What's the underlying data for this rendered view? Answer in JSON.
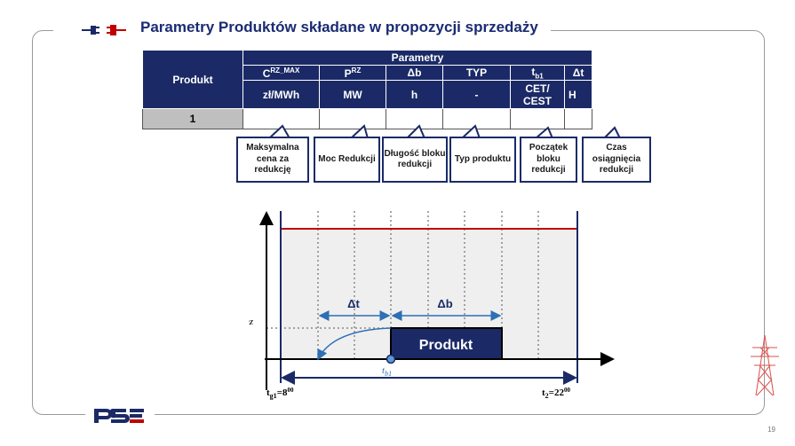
{
  "slide": {
    "title": "Parametry Produktów składane w propozycji sprzedaży",
    "page_number": "19"
  },
  "table": {
    "row_header": "Produkt",
    "group_header": "Parametry",
    "params": [
      {
        "name": "C",
        "sup": "RZ_MAX",
        "sub": "",
        "unit": "zł/MWh"
      },
      {
        "name": "P",
        "sup": "RZ",
        "sub": "",
        "unit": "MW"
      },
      {
        "name": "Δb",
        "sup": "",
        "sub": "",
        "unit": "h"
      },
      {
        "name": "TYP",
        "sup": "",
        "sub": "",
        "unit": "-"
      },
      {
        "name": "t",
        "sup": "",
        "sub": "b1",
        "unit": "CET/ CEST"
      },
      {
        "name": "Δt",
        "sup": "",
        "sub": "",
        "unit": "H"
      }
    ],
    "rows": [
      {
        "label": "1",
        "values": [
          "",
          "",
          "",
          "",
          "",
          ""
        ]
      }
    ]
  },
  "callouts": [
    "Maksymalna cena za redukcję",
    "Moc Redukcji",
    "Długość bloku redukcji",
    "Typ produktu",
    "Początek bloku redukcji",
    "Czas osiągnięcia redukcji"
  ],
  "diagram": {
    "p_label": "P",
    "p_sup": "RZ",
    "dt_label": "Δt",
    "db_label": "Δb",
    "product_label": "Produkt",
    "tb1_label": "t",
    "tb1_sub": "b1",
    "tg1_label": "t",
    "tg1_sub": "g1",
    "tg1_value": "=8",
    "tg1_sup": "00",
    "t2_label": "t",
    "t2_sub": "2",
    "t2_value": "=22",
    "t2_sup": "00"
  },
  "colors": {
    "brand_navy": "#1b2a66",
    "red_line": "#c00000",
    "product_fill": "#1b2a66",
    "blue_arrow": "#2e6fb5",
    "grey_cell": "#bfbfbf"
  },
  "icons": [
    "plug-icon",
    "socket-icon",
    "pse-logo",
    "power-pylon-icon"
  ]
}
